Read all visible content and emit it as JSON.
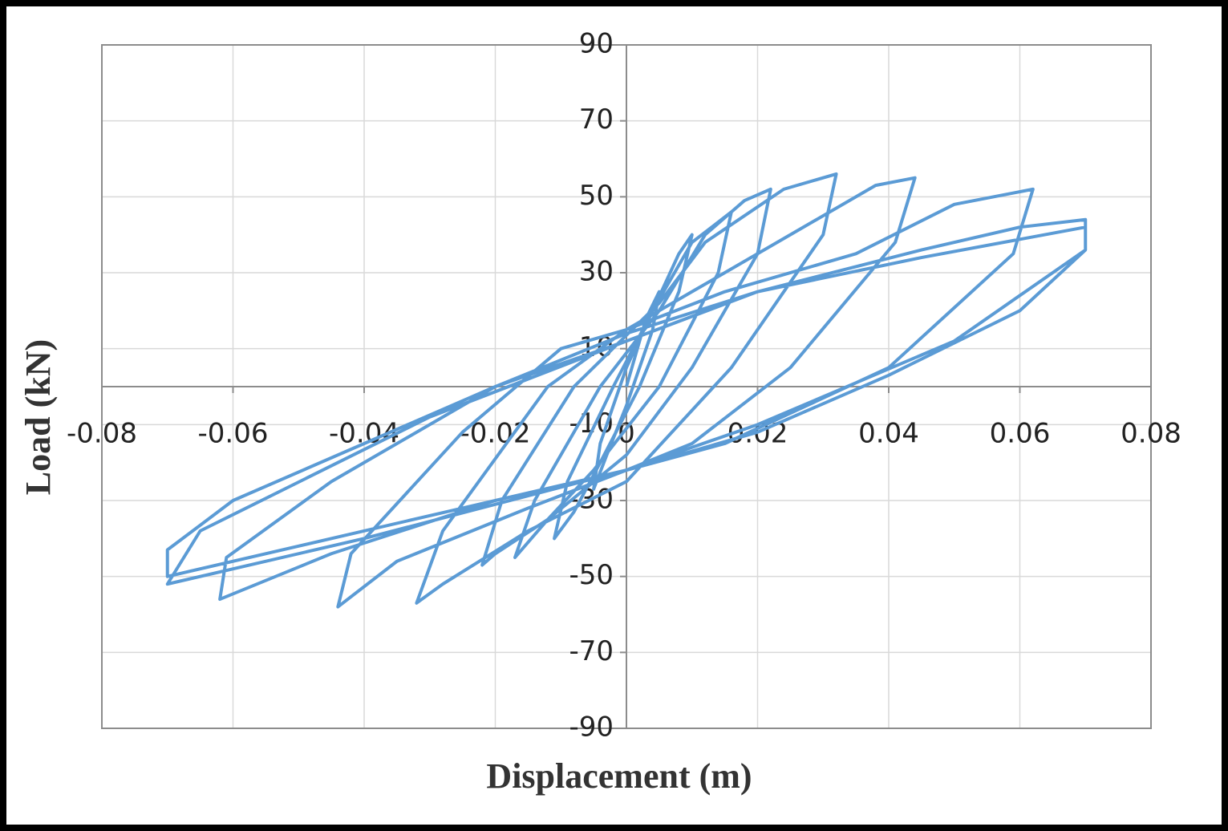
{
  "chart_data": {
    "type": "line",
    "x_label": "Displacement (m)",
    "y_label": "Load (kN)",
    "xlim": [
      -0.08,
      0.08
    ],
    "xticks": [
      -0.08,
      -0.06,
      -0.04,
      -0.02,
      0,
      0.02,
      0.04,
      0.06,
      0.08
    ],
    "ylim": [
      -90,
      90
    ],
    "yticks": [
      -90,
      -70,
      -50,
      -30,
      -10,
      10,
      30,
      50,
      70,
      90
    ],
    "grid": true,
    "x": [
      0,
      0.003,
      0.005,
      0.004,
      0,
      -0.003,
      -0.005,
      -0.004,
      0,
      0.004,
      0.008,
      0.01,
      0.008,
      0.002,
      -0.004,
      -0.008,
      -0.011,
      -0.009,
      -0.002,
      0.004,
      0.01,
      0.016,
      0.014,
      0.005,
      -0.005,
      -0.012,
      -0.017,
      -0.014,
      -0.004,
      0.005,
      0.012,
      0.018,
      0.022,
      0.02,
      0.01,
      0,
      -0.012,
      -0.02,
      -0.022,
      -0.019,
      -0.008,
      0.005,
      0.012,
      0.024,
      0.032,
      0.03,
      0.016,
      0,
      -0.015,
      -0.028,
      -0.032,
      -0.028,
      -0.012,
      0,
      0.01,
      0.025,
      0.038,
      0.044,
      0.041,
      0.025,
      0.01,
      0,
      -0.015,
      -0.035,
      -0.044,
      -0.042,
      -0.025,
      -0.01,
      0,
      0.015,
      0.035,
      0.05,
      0.062,
      0.059,
      0.04,
      0.015,
      0,
      -0.02,
      -0.045,
      -0.062,
      -0.061,
      -0.045,
      -0.02,
      0,
      0.02,
      0.045,
      0.06,
      0.07,
      0.07,
      0.06,
      0.04,
      0.02,
      0,
      -0.025,
      -0.05,
      -0.07,
      -0.07,
      -0.06,
      -0.04,
      -0.02,
      0,
      0.02,
      0.045,
      0.07,
      0.07,
      0.05,
      0.02,
      0,
      -0.04,
      -0.07,
      -0.065,
      -0.03,
      0
    ],
    "series": [
      {
        "color": "#5b9bd5",
        "values": [
          0,
          18,
          25,
          15,
          -5,
          -18,
          -27,
          -15,
          5,
          20,
          35,
          40,
          25,
          0,
          -20,
          -33,
          -40,
          -25,
          0,
          20,
          38,
          46,
          30,
          0,
          -22,
          -35,
          -45,
          -30,
          0,
          20,
          40,
          49,
          52,
          35,
          5,
          -18,
          -35,
          -44,
          -47,
          -30,
          0,
          22,
          38,
          52,
          56,
          40,
          5,
          -25,
          -38,
          -52,
          -57,
          -38,
          0,
          15,
          25,
          40,
          53,
          55,
          38,
          5,
          -15,
          -22,
          -32,
          -46,
          -58,
          -44,
          -12,
          10,
          15,
          25,
          35,
          48,
          52,
          35,
          5,
          -15,
          -22,
          -30,
          -44,
          -56,
          -45,
          -25,
          0,
          14,
          25,
          36,
          42,
          44,
          36,
          20,
          3,
          -12,
          -22,
          -32,
          -42,
          -50,
          -43,
          -30,
          -15,
          0,
          12,
          25,
          34,
          42,
          36,
          12,
          -10,
          -22,
          -40,
          -52,
          -38,
          -8,
          12
        ]
      }
    ]
  }
}
